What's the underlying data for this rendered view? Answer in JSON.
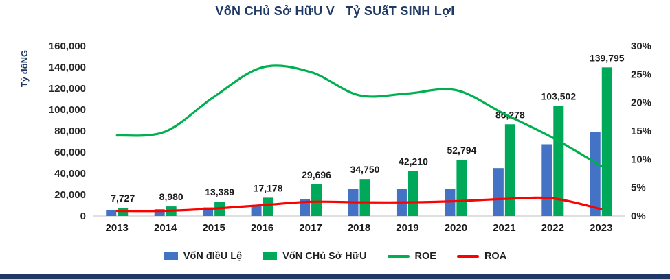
{
  "title": "VốN CHủ Sở HữU V   Tỷ SUấT SINH LợI",
  "colors": {
    "charter_capital_bar": "#4472C4",
    "equity_bar": "#00A859",
    "roe_line": "#00B050",
    "roa_line": "#FF0000",
    "title_text": "#1f3864",
    "axis_text": "#262626",
    "footer_bar": "#1f3864",
    "axis_line": "#bfbfbf"
  },
  "chart_data": {
    "type": "combo",
    "title": "VốN CHủ Sở HữU V   Tỷ SUấT SINH LợI",
    "categories": [
      "2013",
      "2014",
      "2015",
      "2016",
      "2017",
      "2018",
      "2019",
      "2020",
      "2021",
      "2022",
      "2023"
    ],
    "left_axis": {
      "label": "Tỷ đồNG",
      "min": 0,
      "max": 160000,
      "step": 20000
    },
    "right_axis": {
      "min": 0,
      "max": 30,
      "step": 5,
      "suffix": "%"
    },
    "grid": false,
    "legend_position": "bottom",
    "series": [
      {
        "name": "VốN đIềU Lệ",
        "type": "bar",
        "axis": "left",
        "color": "#4472C4",
        "data_labels": false,
        "values": [
          5770,
          6347,
          8056,
          9181,
          15706,
          25300,
          25300,
          25300,
          45057,
          67434,
          79339
        ]
      },
      {
        "name": "VốN CHủ Sở HữU",
        "type": "bar",
        "axis": "left",
        "color": "#00A859",
        "data_labels": true,
        "values": [
          7727,
          8980,
          13389,
          17178,
          29696,
          34750,
          42210,
          52794,
          86278,
          103502,
          139795
        ]
      },
      {
        "name": "ROE",
        "type": "line",
        "axis": "right",
        "color": "#00B050",
        "data_labels": false,
        "values": [
          14.2,
          14.9,
          21.0,
          26.2,
          25.4,
          21.3,
          21.6,
          22.2,
          18.0,
          13.8,
          8.8
        ]
      },
      {
        "name": "ROA",
        "type": "line",
        "axis": "right",
        "color": "#FF0000",
        "data_labels": false,
        "values": [
          0.9,
          0.9,
          1.3,
          1.9,
          2.5,
          2.4,
          2.4,
          2.6,
          3.0,
          3.1,
          1.2
        ]
      }
    ]
  }
}
